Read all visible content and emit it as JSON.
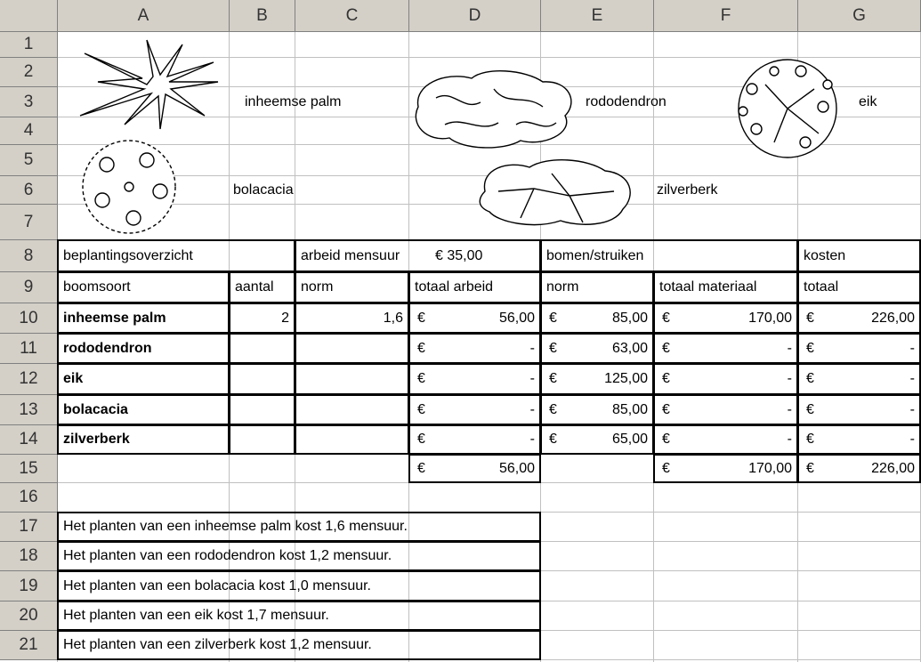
{
  "column_headers": [
    "A",
    "B",
    "C",
    "D",
    "E",
    "F",
    "G"
  ],
  "row_headers": [
    1,
    2,
    3,
    4,
    5,
    6,
    7,
    8,
    9,
    10,
    11,
    12,
    13,
    14,
    15,
    16,
    17,
    18,
    19,
    20,
    21
  ],
  "plant_labels": [
    "inheemse palm",
    "rododendron",
    "eik",
    "bolacacia",
    "zilverberk"
  ],
  "table": {
    "group_headers": [
      "beplantingsoverzicht",
      "arbeid mensuur",
      "€ 35,00",
      "bomen/struiken",
      "kosten"
    ],
    "column_titles": [
      "boomsoort",
      "aantal",
      "norm",
      "totaal arbeid",
      "norm",
      "totaal materiaal",
      "totaal"
    ],
    "rows": [
      [
        "inheemse palm",
        2,
        "1,6",
        [
          "€",
          "56,00"
        ],
        [
          "€",
          "85,00"
        ],
        [
          "€",
          "170,00"
        ],
        [
          "€",
          "226,00"
        ]
      ],
      [
        "rododendron",
        null,
        null,
        [
          "€",
          "-"
        ],
        [
          "€",
          "63,00"
        ],
        [
          "€",
          "-"
        ],
        [
          "€",
          "-"
        ]
      ],
      [
        "eik",
        null,
        null,
        [
          "€",
          "-"
        ],
        [
          "€",
          "125,00"
        ],
        [
          "€",
          "-"
        ],
        [
          "€",
          "-"
        ]
      ],
      [
        "bolacacia",
        null,
        null,
        [
          "€",
          "-"
        ],
        [
          "€",
          "85,00"
        ],
        [
          "€",
          "-"
        ],
        [
          "€",
          "-"
        ]
      ],
      [
        "zilverberk",
        null,
        null,
        [
          "€",
          "-"
        ],
        [
          "€",
          "65,00"
        ],
        [
          "€",
          "-"
        ],
        [
          "€",
          "-"
        ]
      ]
    ],
    "totals": [
      [
        "€",
        "56,00"
      ],
      [
        "€",
        "170,00"
      ],
      [
        "€",
        "226,00"
      ]
    ]
  },
  "notes": [
    "Het planten van een inheemse palm kost 1,6 mensuur.",
    "Het planten van een rododendron kost 1,2 mensuur.",
    "Het planten van een bolacacia kost 1,0 mensuur.",
    "Het planten van een eik kost 1,7 mensuur.",
    "Het planten van een zilverberk kost 1,2 mensuur."
  ]
}
